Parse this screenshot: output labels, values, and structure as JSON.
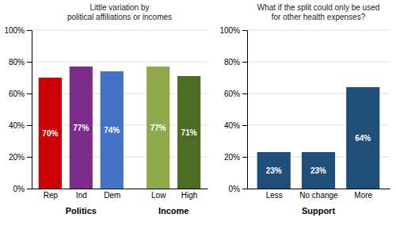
{
  "chart_data": [
    {
      "type": "bar",
      "title": "Little variation by\npolitical affiliations or incomes",
      "categories": [
        "Rep",
        "Ind",
        "Dem",
        "Low",
        "High"
      ],
      "values": [
        70,
        77,
        74,
        77,
        71
      ],
      "value_labels": [
        "70%",
        "77%",
        "74%",
        "77%",
        "71%"
      ],
      "colors": [
        "#cc0000",
        "#7b2d8b",
        "#4472c4",
        "#8faa4b",
        "#4d6b22"
      ],
      "groups": [
        {
          "label": "Politics",
          "categories": [
            "Rep",
            "Ind",
            "Dem"
          ]
        },
        {
          "label": "Income",
          "categories": [
            "Low",
            "High"
          ]
        }
      ],
      "ylim": [
        0,
        100
      ],
      "yticks": [
        {
          "value": 0,
          "label": "0%"
        },
        {
          "value": 20,
          "label": "20%"
        },
        {
          "value": 40,
          "label": "40%"
        },
        {
          "value": 60,
          "label": "60%"
        },
        {
          "value": 80,
          "label": "80%"
        },
        {
          "value": 100,
          "label": "100%"
        }
      ],
      "grid": true,
      "data_labels": true
    },
    {
      "type": "bar",
      "title": "What if the split could only be used\nfor other health expenses?",
      "categories": [
        "Less",
        "No change",
        "More"
      ],
      "values": [
        23,
        23,
        64
      ],
      "value_labels": [
        "23%",
        "23%",
        "64%"
      ],
      "color": "#1f4e79",
      "x_label": "Support",
      "ylim": [
        0,
        100
      ],
      "yticks": [
        {
          "value": 0,
          "label": "0%"
        },
        {
          "value": 20,
          "label": "20%"
        },
        {
          "value": 40,
          "label": "40%"
        },
        {
          "value": 60,
          "label": "60%"
        },
        {
          "value": 80,
          "label": "80%"
        },
        {
          "value": 100,
          "label": "100%"
        }
      ],
      "grid": true,
      "data_labels": true
    }
  ]
}
